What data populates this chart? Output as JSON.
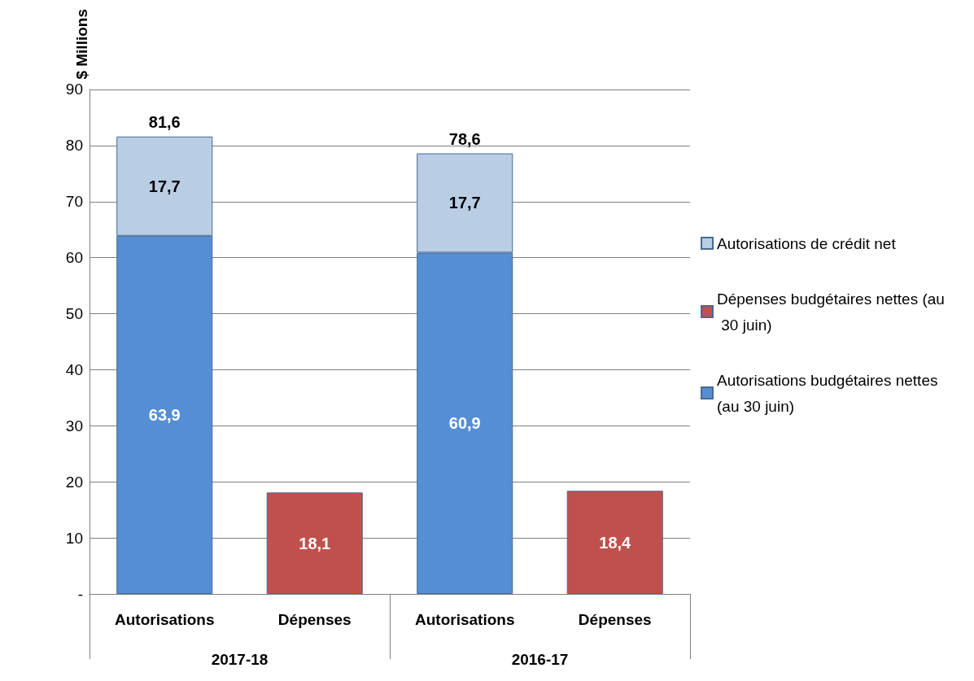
{
  "chart_data": {
    "type": "bar",
    "stacked": true,
    "ylabel": "$ Millions",
    "categories": [
      "Autorisations",
      "Dépenses",
      "Autorisations",
      "Dépenses"
    ],
    "annotations": [
      "2017-18",
      "2016-17"
    ],
    "series": [
      {
        "name": "Autorisations budgétaires nettes (au 30 juin)",
        "color": "#558ed5",
        "values": [
          63.9,
          null,
          60.9,
          null
        ],
        "value_labels": [
          "63,9",
          null,
          "60,9",
          null
        ]
      },
      {
        "name": "Dépenses budgétaires nettes (au 30 juin)",
        "color": "#c0504d",
        "values": [
          null,
          18.1,
          null,
          18.4
        ],
        "value_labels": [
          null,
          "18,1",
          null,
          "18,4"
        ]
      },
      {
        "name": "Autorisations de crédit net",
        "color": "#b9cde5",
        "values": [
          17.7,
          null,
          17.7,
          null
        ],
        "value_labels": [
          "17,7",
          null,
          "17,7",
          null
        ]
      }
    ],
    "totals": [
      "81,6",
      null,
      "78,6",
      null
    ],
    "ylim": [
      0,
      90
    ],
    "yticks": [
      {
        "value": 0,
        "label": "-"
      },
      10,
      20,
      30,
      40,
      50,
      60,
      70,
      80,
      90
    ],
    "grid": "y",
    "legend": "right"
  }
}
